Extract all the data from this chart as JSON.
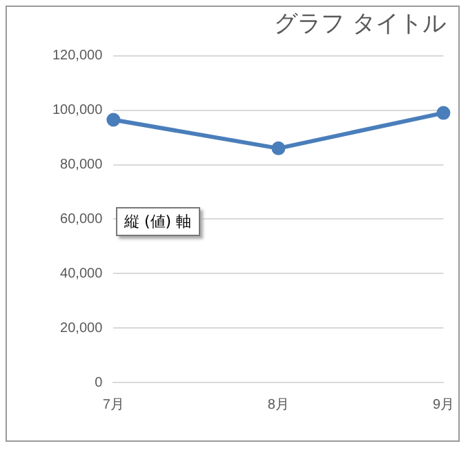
{
  "chart_data": {
    "type": "line",
    "title": "グラフ タイトル",
    "categories": [
      "7月",
      "8月",
      "9月"
    ],
    "series": [
      {
        "color": "#4a7ebb",
        "values": [
          96500,
          86000,
          99000
        ]
      }
    ],
    "ylim": [
      0,
      120000
    ],
    "yticks": [
      {
        "value": 0,
        "label": "0"
      },
      {
        "value": 20000,
        "label": "20,000"
      },
      {
        "value": 40000,
        "label": "40,000"
      },
      {
        "value": 60000,
        "label": "60,000"
      },
      {
        "value": 80000,
        "label": "80,000"
      },
      {
        "value": 100000,
        "label": "100,000"
      },
      {
        "value": 120000,
        "label": "120,000"
      }
    ],
    "grid": "y",
    "legend": false,
    "marker": "circle",
    "line_style": "solid",
    "annotations": [
      "縦 (値) 軸"
    ]
  }
}
